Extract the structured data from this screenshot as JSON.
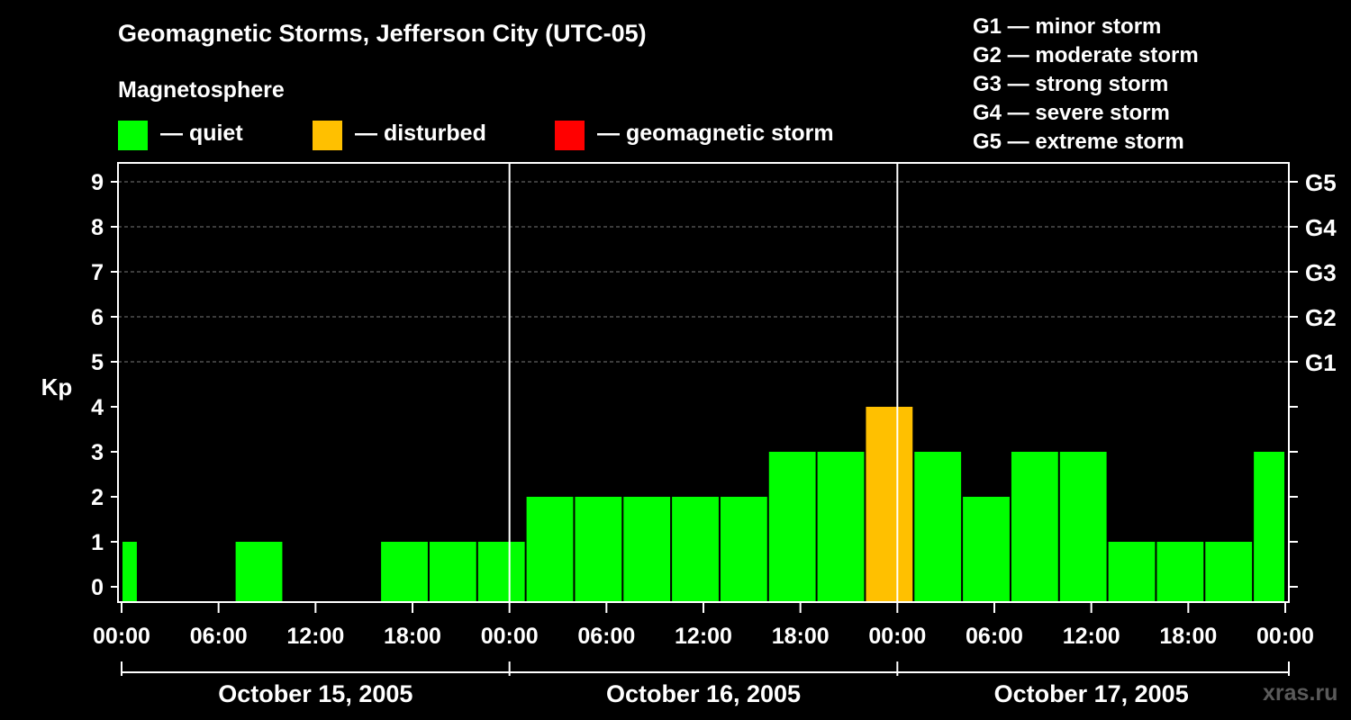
{
  "title": "Geomagnetic Storms, Jefferson City (UTC-05)",
  "magnetosphere_label": "Magnetosphere",
  "legend": [
    {
      "label": "— quiet",
      "color": "#00ff00"
    },
    {
      "label": "— disturbed",
      "color": "#ffc000"
    },
    {
      "label": "— geomagnetic storm",
      "color": "#ff0000"
    }
  ],
  "g_scale": [
    "G1 — minor storm",
    "G2 — moderate storm",
    "G3 — strong storm",
    "G4 — severe storm",
    "G5 — extreme storm"
  ],
  "watermark": "xras.ru",
  "chart_data": {
    "type": "bar",
    "ylabel": "Kp",
    "ylim": [
      0,
      9
    ],
    "y_ticks": [
      0,
      1,
      2,
      3,
      4,
      5,
      6,
      7,
      8,
      9
    ],
    "right_ticks": [
      {
        "kp": 5,
        "label": "G1"
      },
      {
        "kp": 6,
        "label": "G2"
      },
      {
        "kp": 7,
        "label": "G3"
      },
      {
        "kp": 8,
        "label": "G4"
      },
      {
        "kp": 9,
        "label": "G5"
      }
    ],
    "x_tick_labels": [
      "00:00",
      "06:00",
      "12:00",
      "18:00",
      "00:00",
      "06:00",
      "12:00",
      "18:00",
      "00:00",
      "06:00",
      "12:00",
      "18:00",
      "00:00"
    ],
    "dates": [
      "October 15, 2005",
      "October 16, 2005",
      "October 17, 2005"
    ],
    "grid": true,
    "colors": {
      "quiet": "#00ff00",
      "disturbed": "#ffc000",
      "storm": "#ff0000"
    },
    "bars": [
      {
        "start_hour": 0,
        "end_hour": 1,
        "kp": 1
      },
      {
        "start_hour": 7,
        "end_hour": 10,
        "kp": 1
      },
      {
        "start_hour": 16,
        "end_hour": 19,
        "kp": 1
      },
      {
        "start_hour": 19,
        "end_hour": 22,
        "kp": 1
      },
      {
        "start_hour": 22,
        "end_hour": 25,
        "kp": 1
      },
      {
        "start_hour": 25,
        "end_hour": 28,
        "kp": 2
      },
      {
        "start_hour": 28,
        "end_hour": 31,
        "kp": 2
      },
      {
        "start_hour": 31,
        "end_hour": 34,
        "kp": 2
      },
      {
        "start_hour": 34,
        "end_hour": 37,
        "kp": 2
      },
      {
        "start_hour": 37,
        "end_hour": 40,
        "kp": 2
      },
      {
        "start_hour": 40,
        "end_hour": 43,
        "kp": 3
      },
      {
        "start_hour": 43,
        "end_hour": 46,
        "kp": 3
      },
      {
        "start_hour": 46,
        "end_hour": 49,
        "kp": 4
      },
      {
        "start_hour": 49,
        "end_hour": 52,
        "kp": 3
      },
      {
        "start_hour": 52,
        "end_hour": 55,
        "kp": 2
      },
      {
        "start_hour": 55,
        "end_hour": 58,
        "kp": 3
      },
      {
        "start_hour": 58,
        "end_hour": 61,
        "kp": 3
      },
      {
        "start_hour": 61,
        "end_hour": 64,
        "kp": 1
      },
      {
        "start_hour": 64,
        "end_hour": 67,
        "kp": 1
      },
      {
        "start_hour": 67,
        "end_hour": 70,
        "kp": 1
      },
      {
        "start_hour": 70,
        "end_hour": 72,
        "kp": 3
      }
    ]
  }
}
